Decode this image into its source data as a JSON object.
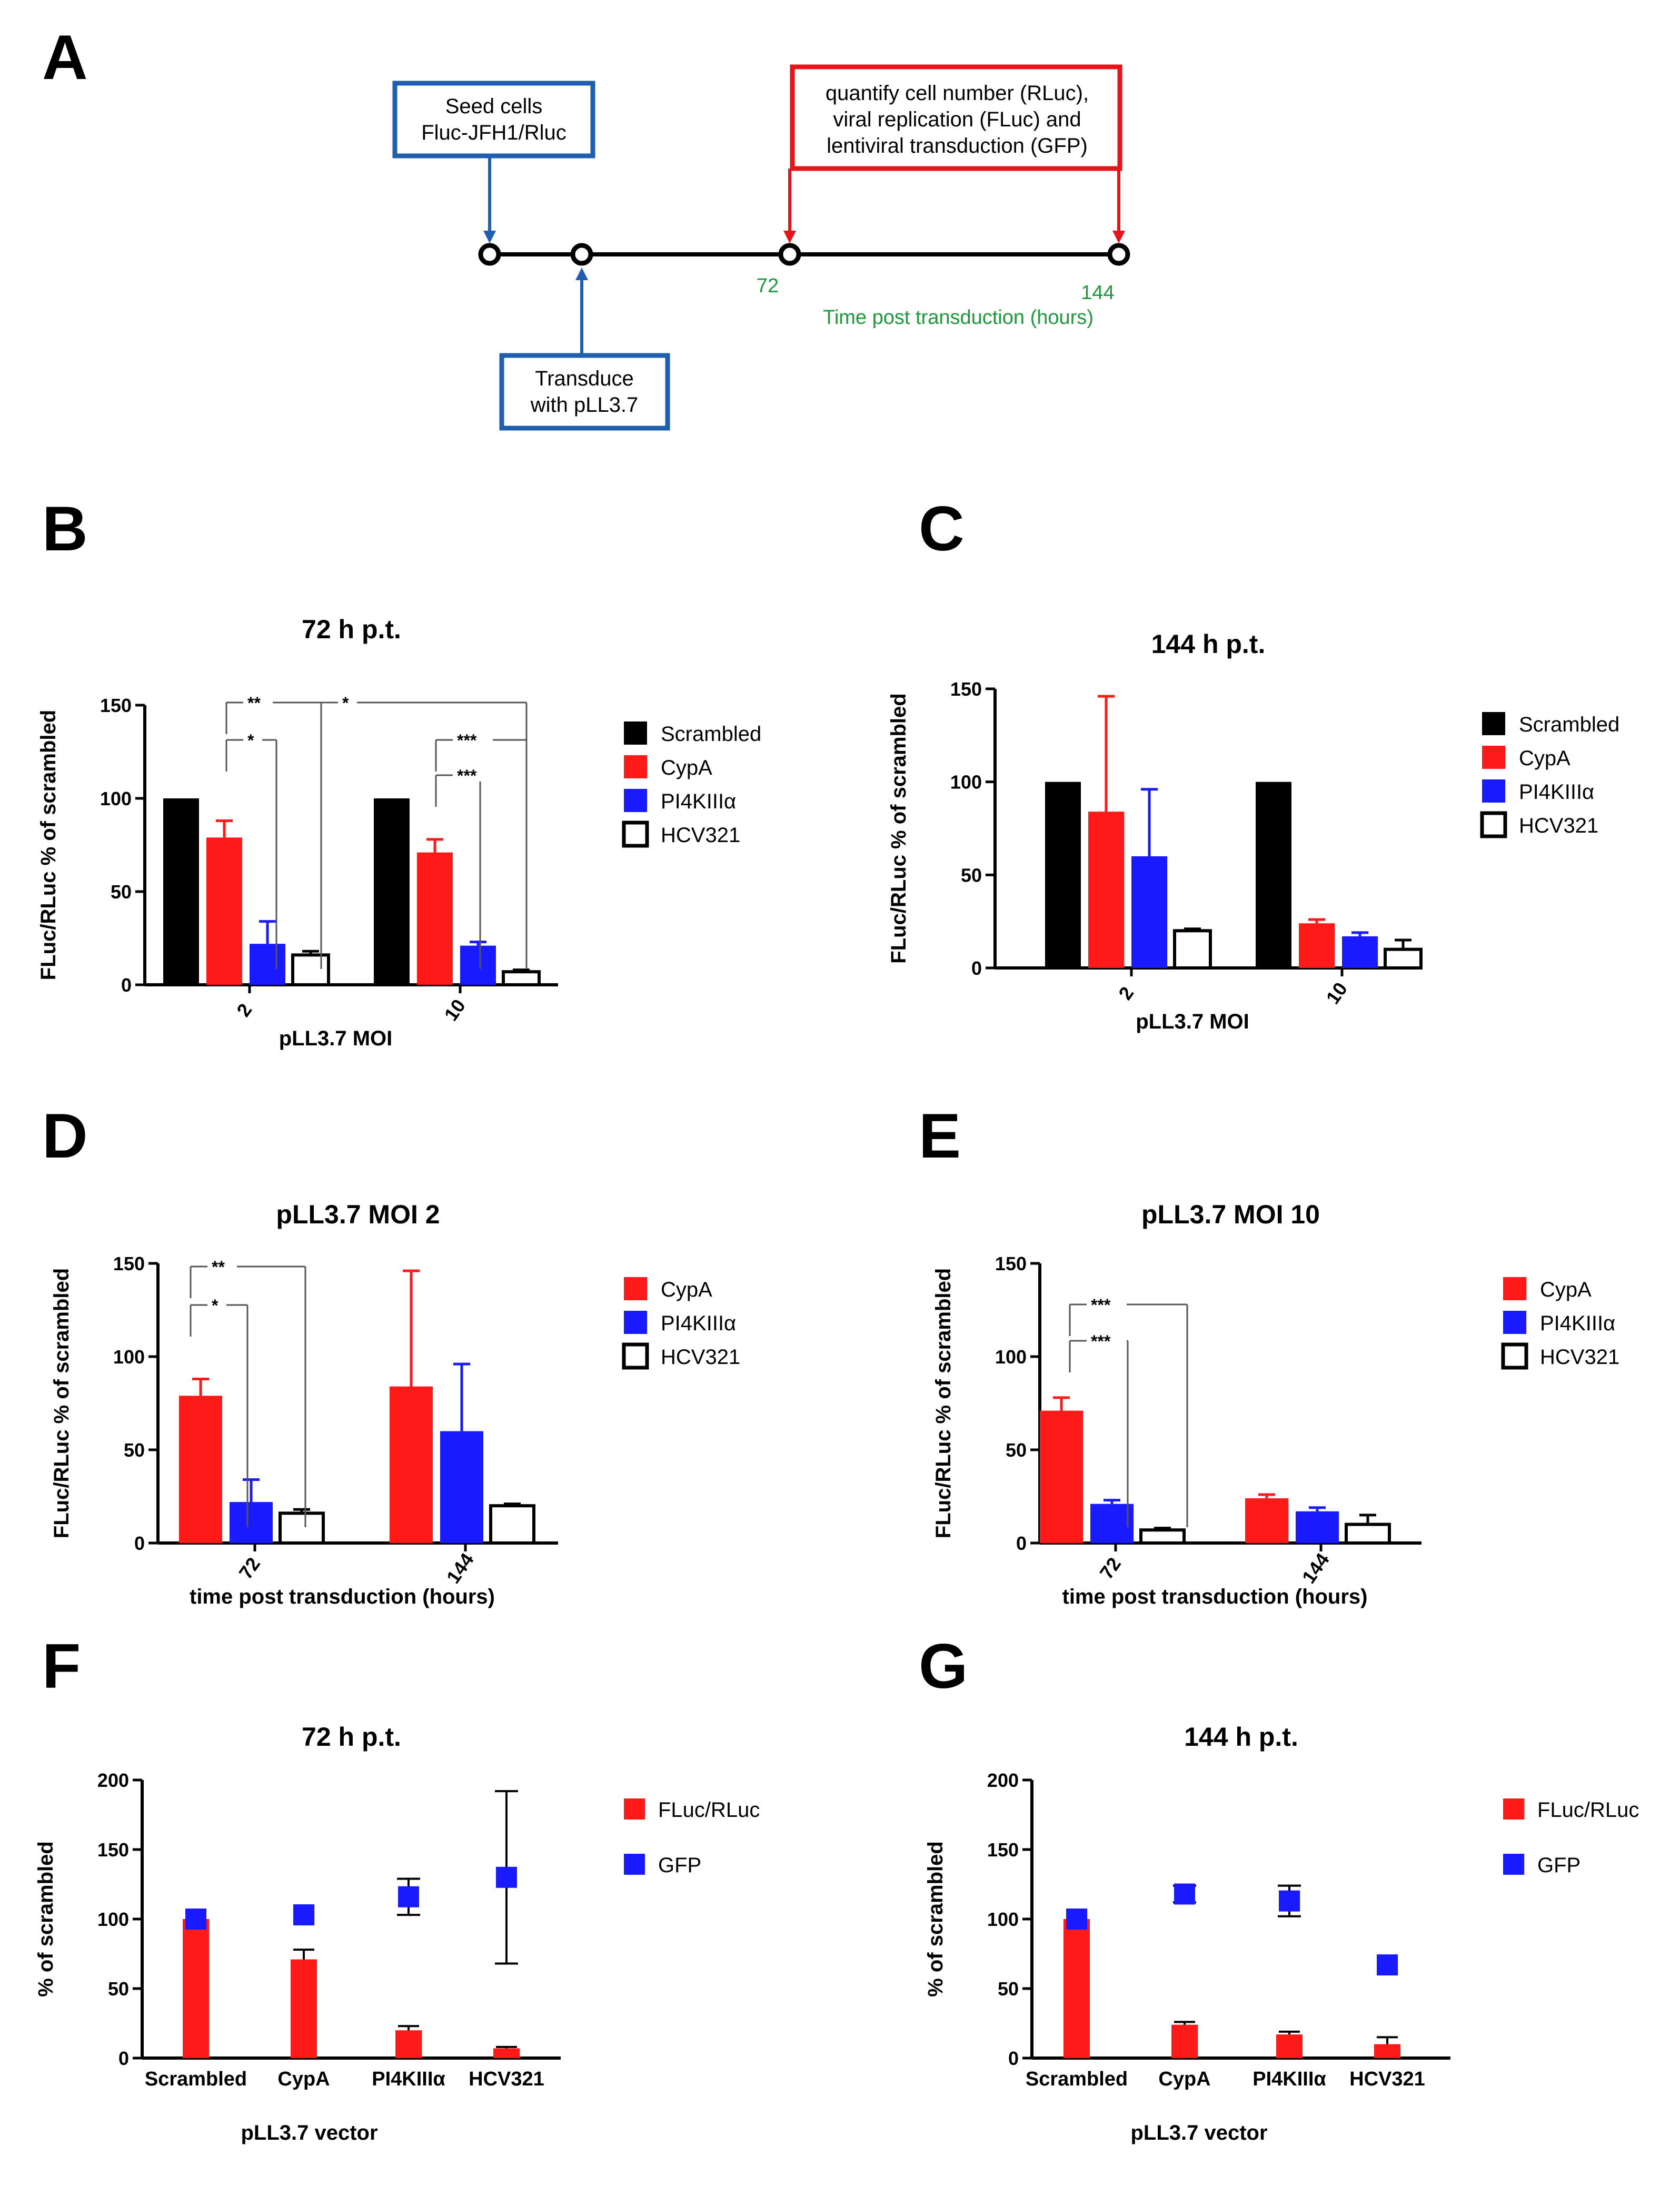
{
  "panels": {
    "A": "A",
    "B": "B",
    "C": "C",
    "D": "D",
    "E": "E",
    "F": "F",
    "G": "G"
  },
  "timeline": {
    "seed_box": [
      "Seed cells",
      "Fluc-JFH1/Rluc"
    ],
    "transduce_box": [
      "Transduce",
      "with pLL3.7"
    ],
    "quantify_box": [
      "quantify cell number (RLuc),",
      "viral replication (FLuc) and",
      "lentiviral transduction (GFP)"
    ],
    "tick_72": "72",
    "tick_144": "144",
    "axis_label": "Time post transduction (hours)",
    "colors": {
      "blue_box": "#1f5fb0",
      "red_box": "#e8141c",
      "green_text": "#1a9a3a"
    }
  },
  "colors": {
    "scrambled": "#000000",
    "cypa": "#ff1a1a",
    "pi4k": "#1a1aff",
    "hcv321": "#ffffff",
    "gfp": "#1a1aff"
  },
  "chart_data": [
    {
      "id": "B",
      "type": "bar",
      "title": "72 h p.t.",
      "ylabel": "FLuc/RLuc % of scrambled",
      "xlabel": "pLL3.7 MOI",
      "ylim": [
        0,
        150
      ],
      "yticks": [
        "0",
        "50",
        "100",
        "150"
      ],
      "categories": [
        "2",
        "10"
      ],
      "series": [
        {
          "name": "Scrambled",
          "values": [
            100,
            100
          ],
          "errors": [
            0,
            0
          ]
        },
        {
          "name": "CypA",
          "values": [
            79,
            71
          ],
          "errors": [
            9,
            7
          ]
        },
        {
          "name": "PI4KIIIα",
          "values": [
            22,
            21
          ],
          "errors": [
            12,
            2
          ]
        },
        {
          "name": "HCV321",
          "values": [
            16,
            7
          ],
          "errors": [
            2,
            1
          ]
        }
      ],
      "significance": [
        "**",
        "*",
        "*",
        "***",
        "***"
      ],
      "legend": "right"
    },
    {
      "id": "C",
      "type": "bar",
      "title": "144 h p.t.",
      "ylabel": "FLuc/RLuc % of scrambled",
      "xlabel": "pLL3.7 MOI",
      "ylim": [
        0,
        150
      ],
      "yticks": [
        "0",
        "50",
        "100",
        "150"
      ],
      "categories": [
        "2",
        "10"
      ],
      "series": [
        {
          "name": "Scrambled",
          "values": [
            100,
            100
          ],
          "errors": [
            0,
            0
          ]
        },
        {
          "name": "CypA",
          "values": [
            84,
            24
          ],
          "errors": [
            62,
            2
          ]
        },
        {
          "name": "PI4KIIIα",
          "values": [
            60,
            17
          ],
          "errors": [
            36,
            2
          ]
        },
        {
          "name": "HCV321",
          "values": [
            20,
            10
          ],
          "errors": [
            1,
            5
          ]
        }
      ],
      "legend": "right"
    },
    {
      "id": "D",
      "type": "bar",
      "title": "pLL3.7 MOI 2",
      "ylabel": "FLuc/RLuc % of scrambled",
      "xlabel": "time post transduction (hours)",
      "ylim": [
        0,
        150
      ],
      "yticks": [
        "0",
        "50",
        "100",
        "150"
      ],
      "categories": [
        "72",
        "144"
      ],
      "series": [
        {
          "name": "CypA",
          "values": [
            79,
            84
          ],
          "errors": [
            9,
            62
          ]
        },
        {
          "name": "PI4KIIIα",
          "values": [
            22,
            60
          ],
          "errors": [
            12,
            36
          ]
        },
        {
          "name": "HCV321",
          "values": [
            16,
            20
          ],
          "errors": [
            2,
            1
          ]
        }
      ],
      "significance": [
        "**",
        "*"
      ],
      "legend": "right"
    },
    {
      "id": "E",
      "type": "bar",
      "title": "pLL3.7 MOI 10",
      "ylabel": "FLuc/RLuc % of scrambled",
      "xlabel": "time post transduction (hours)",
      "ylim": [
        0,
        150
      ],
      "yticks": [
        "0",
        "50",
        "100",
        "150"
      ],
      "categories": [
        "72",
        "144"
      ],
      "series": [
        {
          "name": "CypA",
          "values": [
            71,
            24
          ],
          "errors": [
            7,
            2
          ]
        },
        {
          "name": "PI4KIIIα",
          "values": [
            21,
            17
          ],
          "errors": [
            2,
            2
          ]
        },
        {
          "name": "HCV321",
          "values": [
            7,
            10
          ],
          "errors": [
            1,
            5
          ]
        }
      ],
      "significance": [
        "***",
        "***"
      ],
      "legend": "right"
    },
    {
      "id": "F",
      "type": "bar+scatter",
      "title": "72 h p.t.",
      "ylabel": "% of scrambled",
      "xlabel": "pLL3.7 vector",
      "ylim": [
        0,
        200
      ],
      "yticks": [
        "0",
        "50",
        "100",
        "150",
        "200"
      ],
      "categories": [
        "Scrambled",
        "CypA",
        "PI4KIIIα",
        "HCV321"
      ],
      "bars": {
        "name": "FLuc/RLuc",
        "values": [
          100,
          71,
          20,
          7
        ],
        "errors": [
          0,
          7,
          3,
          1
        ]
      },
      "points": {
        "name": "GFP",
        "values": [
          100,
          103,
          116,
          130
        ],
        "errors": [
          0,
          0,
          13,
          62
        ]
      },
      "legend": "right"
    },
    {
      "id": "G",
      "type": "bar+scatter",
      "title": "144 h p.t.",
      "ylabel": "% of scrambled",
      "xlabel": "pLL3.7 vector",
      "ylim": [
        0,
        200
      ],
      "yticks": [
        "0",
        "50",
        "100",
        "150",
        "200"
      ],
      "categories": [
        "Scrambled",
        "CypA",
        "PI4KIIIα",
        "HCV321"
      ],
      "bars": {
        "name": "FLuc/RLuc",
        "values": [
          100,
          24,
          17,
          10
        ],
        "errors": [
          0,
          2,
          2,
          5
        ]
      },
      "points": {
        "name": "GFP",
        "values": [
          100,
          118,
          113,
          67
        ],
        "errors": [
          0,
          6,
          11,
          0
        ]
      },
      "legend": "right"
    }
  ]
}
